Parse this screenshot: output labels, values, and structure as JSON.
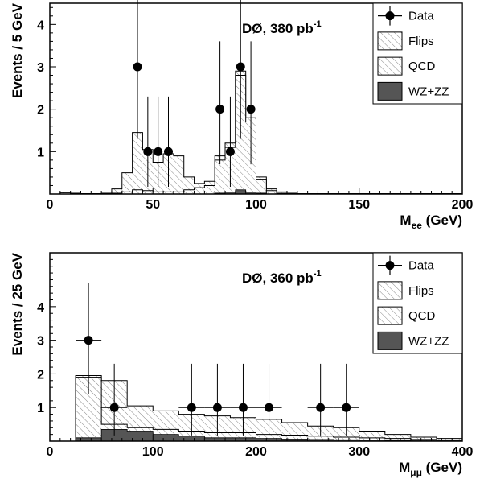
{
  "colors": {
    "frame": "#000000",
    "data": "#000000",
    "wzzz": "#555555",
    "hatch": "#888888",
    "background": "#ffffff"
  },
  "chart_data": [
    {
      "type": "histogram",
      "annotation": "DØ, 380 pb",
      "annotation_sup": "-1",
      "ylabel": "Events / 5 GeV",
      "xlabel": "M",
      "xlabel_sub": "ee",
      "xlabel_unit": " (GeV)",
      "xlim": [
        0,
        200
      ],
      "ylim": [
        0,
        4.5
      ],
      "xticks": [
        0,
        50,
        100,
        150,
        200
      ],
      "yticks": [
        1,
        2,
        3,
        4
      ],
      "legend": {
        "position": "top-right",
        "entries": [
          "Data",
          "Flips",
          "QCD",
          "WZ+ZZ"
        ]
      },
      "bin_width": 5,
      "bins_x": [
        0,
        5,
        10,
        15,
        20,
        25,
        30,
        35,
        40,
        45,
        50,
        55,
        60,
        65,
        70,
        75,
        80,
        85,
        90,
        95,
        100,
        105,
        110,
        115,
        120,
        125,
        130,
        135,
        140,
        145,
        150,
        155,
        160,
        165,
        170,
        175,
        180,
        185,
        190,
        195
      ],
      "total_background": [
        0,
        0.03,
        0.02,
        0.01,
        0.01,
        0.02,
        0.12,
        0.5,
        1.45,
        1.05,
        0.75,
        0.95,
        0.9,
        0.4,
        0.25,
        0.3,
        0.9,
        1.2,
        2.9,
        1.8,
        0.4,
        0.12,
        0.05,
        0.02,
        0.01,
        0.01,
        0.01,
        0.01,
        0.01,
        0.01,
        0.01,
        0.01,
        0.01,
        0.01,
        0.01,
        0.01,
        0.01,
        0.01,
        0.01,
        0.01
      ],
      "flips_plus_wzzz": [
        0,
        0,
        0,
        0,
        0,
        0,
        0.02,
        0.05,
        0.1,
        0.08,
        0.05,
        0.05,
        0.05,
        0.1,
        0.15,
        0.2,
        0.8,
        1.1,
        2.8,
        1.7,
        0.35,
        0.08,
        0.02,
        0.01,
        0,
        0,
        0,
        0,
        0,
        0,
        0,
        0,
        0,
        0,
        0,
        0,
        0,
        0,
        0,
        0
      ],
      "wzzz": [
        0,
        0,
        0,
        0,
        0,
        0,
        0,
        0,
        0,
        0,
        0,
        0,
        0,
        0,
        0,
        0,
        0.02,
        0.05,
        0.1,
        0.05,
        0.02,
        0,
        0,
        0,
        0,
        0,
        0,
        0,
        0,
        0,
        0,
        0,
        0,
        0,
        0,
        0,
        0,
        0,
        0,
        0
      ],
      "points": [
        {
          "x": 42.5,
          "y": 3,
          "ylo": 1.3,
          "yhi": 4.8,
          "xerr": 0
        },
        {
          "x": 47.5,
          "y": 1,
          "ylo": 0.17,
          "yhi": 2.3,
          "xerr": 0
        },
        {
          "x": 52.5,
          "y": 1,
          "ylo": 0.17,
          "yhi": 2.3,
          "xerr": 0
        },
        {
          "x": 57.5,
          "y": 1,
          "ylo": 0.17,
          "yhi": 2.3,
          "xerr": 0
        },
        {
          "x": 82.5,
          "y": 2,
          "ylo": 0.7,
          "yhi": 3.6,
          "xerr": 0
        },
        {
          "x": 87.5,
          "y": 1,
          "ylo": 0.17,
          "yhi": 2.3,
          "xerr": 0
        },
        {
          "x": 92.5,
          "y": 3,
          "ylo": 1.3,
          "yhi": 4.8,
          "xerr": 0
        },
        {
          "x": 97.5,
          "y": 2,
          "ylo": 0.7,
          "yhi": 3.6,
          "xerr": 0
        }
      ]
    },
    {
      "type": "histogram",
      "annotation": "DØ, 360 pb",
      "annotation_sup": "-1",
      "ylabel": "Events / 25 GeV",
      "xlabel": "M",
      "xlabel_sub": "μμ",
      "xlabel_unit": " (GeV)",
      "xlim": [
        0,
        400
      ],
      "ylim": [
        0,
        5.6
      ],
      "xticks": [
        0,
        100,
        200,
        300,
        400
      ],
      "yticks": [
        1,
        2,
        3,
        4
      ],
      "legend": {
        "position": "top-right",
        "entries": [
          "Data",
          "Flips",
          "QCD",
          "WZ+ZZ"
        ]
      },
      "bin_width": 25,
      "bins_x": [
        0,
        25,
        50,
        75,
        100,
        125,
        150,
        175,
        200,
        225,
        250,
        275,
        300,
        325,
        350,
        375
      ],
      "total_background": [
        0,
        1.95,
        1.8,
        1.05,
        0.9,
        0.8,
        0.75,
        0.7,
        0.65,
        0.55,
        0.45,
        0.4,
        0.3,
        0.2,
        0.12,
        0.08
      ],
      "flips_plus_wzzz": [
        0,
        1.9,
        0.5,
        0.4,
        0.35,
        0.3,
        0.25,
        0.25,
        0.2,
        0.18,
        0.15,
        0.12,
        0.1,
        0.08,
        0.05,
        0.03
      ],
      "wzzz": [
        0,
        0.1,
        0.35,
        0.3,
        0.2,
        0.15,
        0.1,
        0.1,
        0.08,
        0.06,
        0.05,
        0.04,
        0.03,
        0.02,
        0.01,
        0.01
      ],
      "points": [
        {
          "x": 37.5,
          "y": 3,
          "ylo": 1.4,
          "yhi": 4.7,
          "xerr": 12.5
        },
        {
          "x": 62.5,
          "y": 1,
          "ylo": 0.17,
          "yhi": 2.3,
          "xerr": 12.5
        },
        {
          "x": 137.5,
          "y": 1,
          "ylo": 0.17,
          "yhi": 2.3,
          "xerr": 12.5
        },
        {
          "x": 162.5,
          "y": 1,
          "ylo": 0.17,
          "yhi": 2.3,
          "xerr": 12.5
        },
        {
          "x": 187.5,
          "y": 1,
          "ylo": 0.17,
          "yhi": 2.3,
          "xerr": 12.5
        },
        {
          "x": 212.5,
          "y": 1,
          "ylo": 0.17,
          "yhi": 2.3,
          "xerr": 12.5
        },
        {
          "x": 262.5,
          "y": 1,
          "ylo": 0.17,
          "yhi": 2.3,
          "xerr": 12.5
        },
        {
          "x": 287.5,
          "y": 1,
          "ylo": 0.17,
          "yhi": 2.3,
          "xerr": 12.5
        }
      ]
    }
  ]
}
